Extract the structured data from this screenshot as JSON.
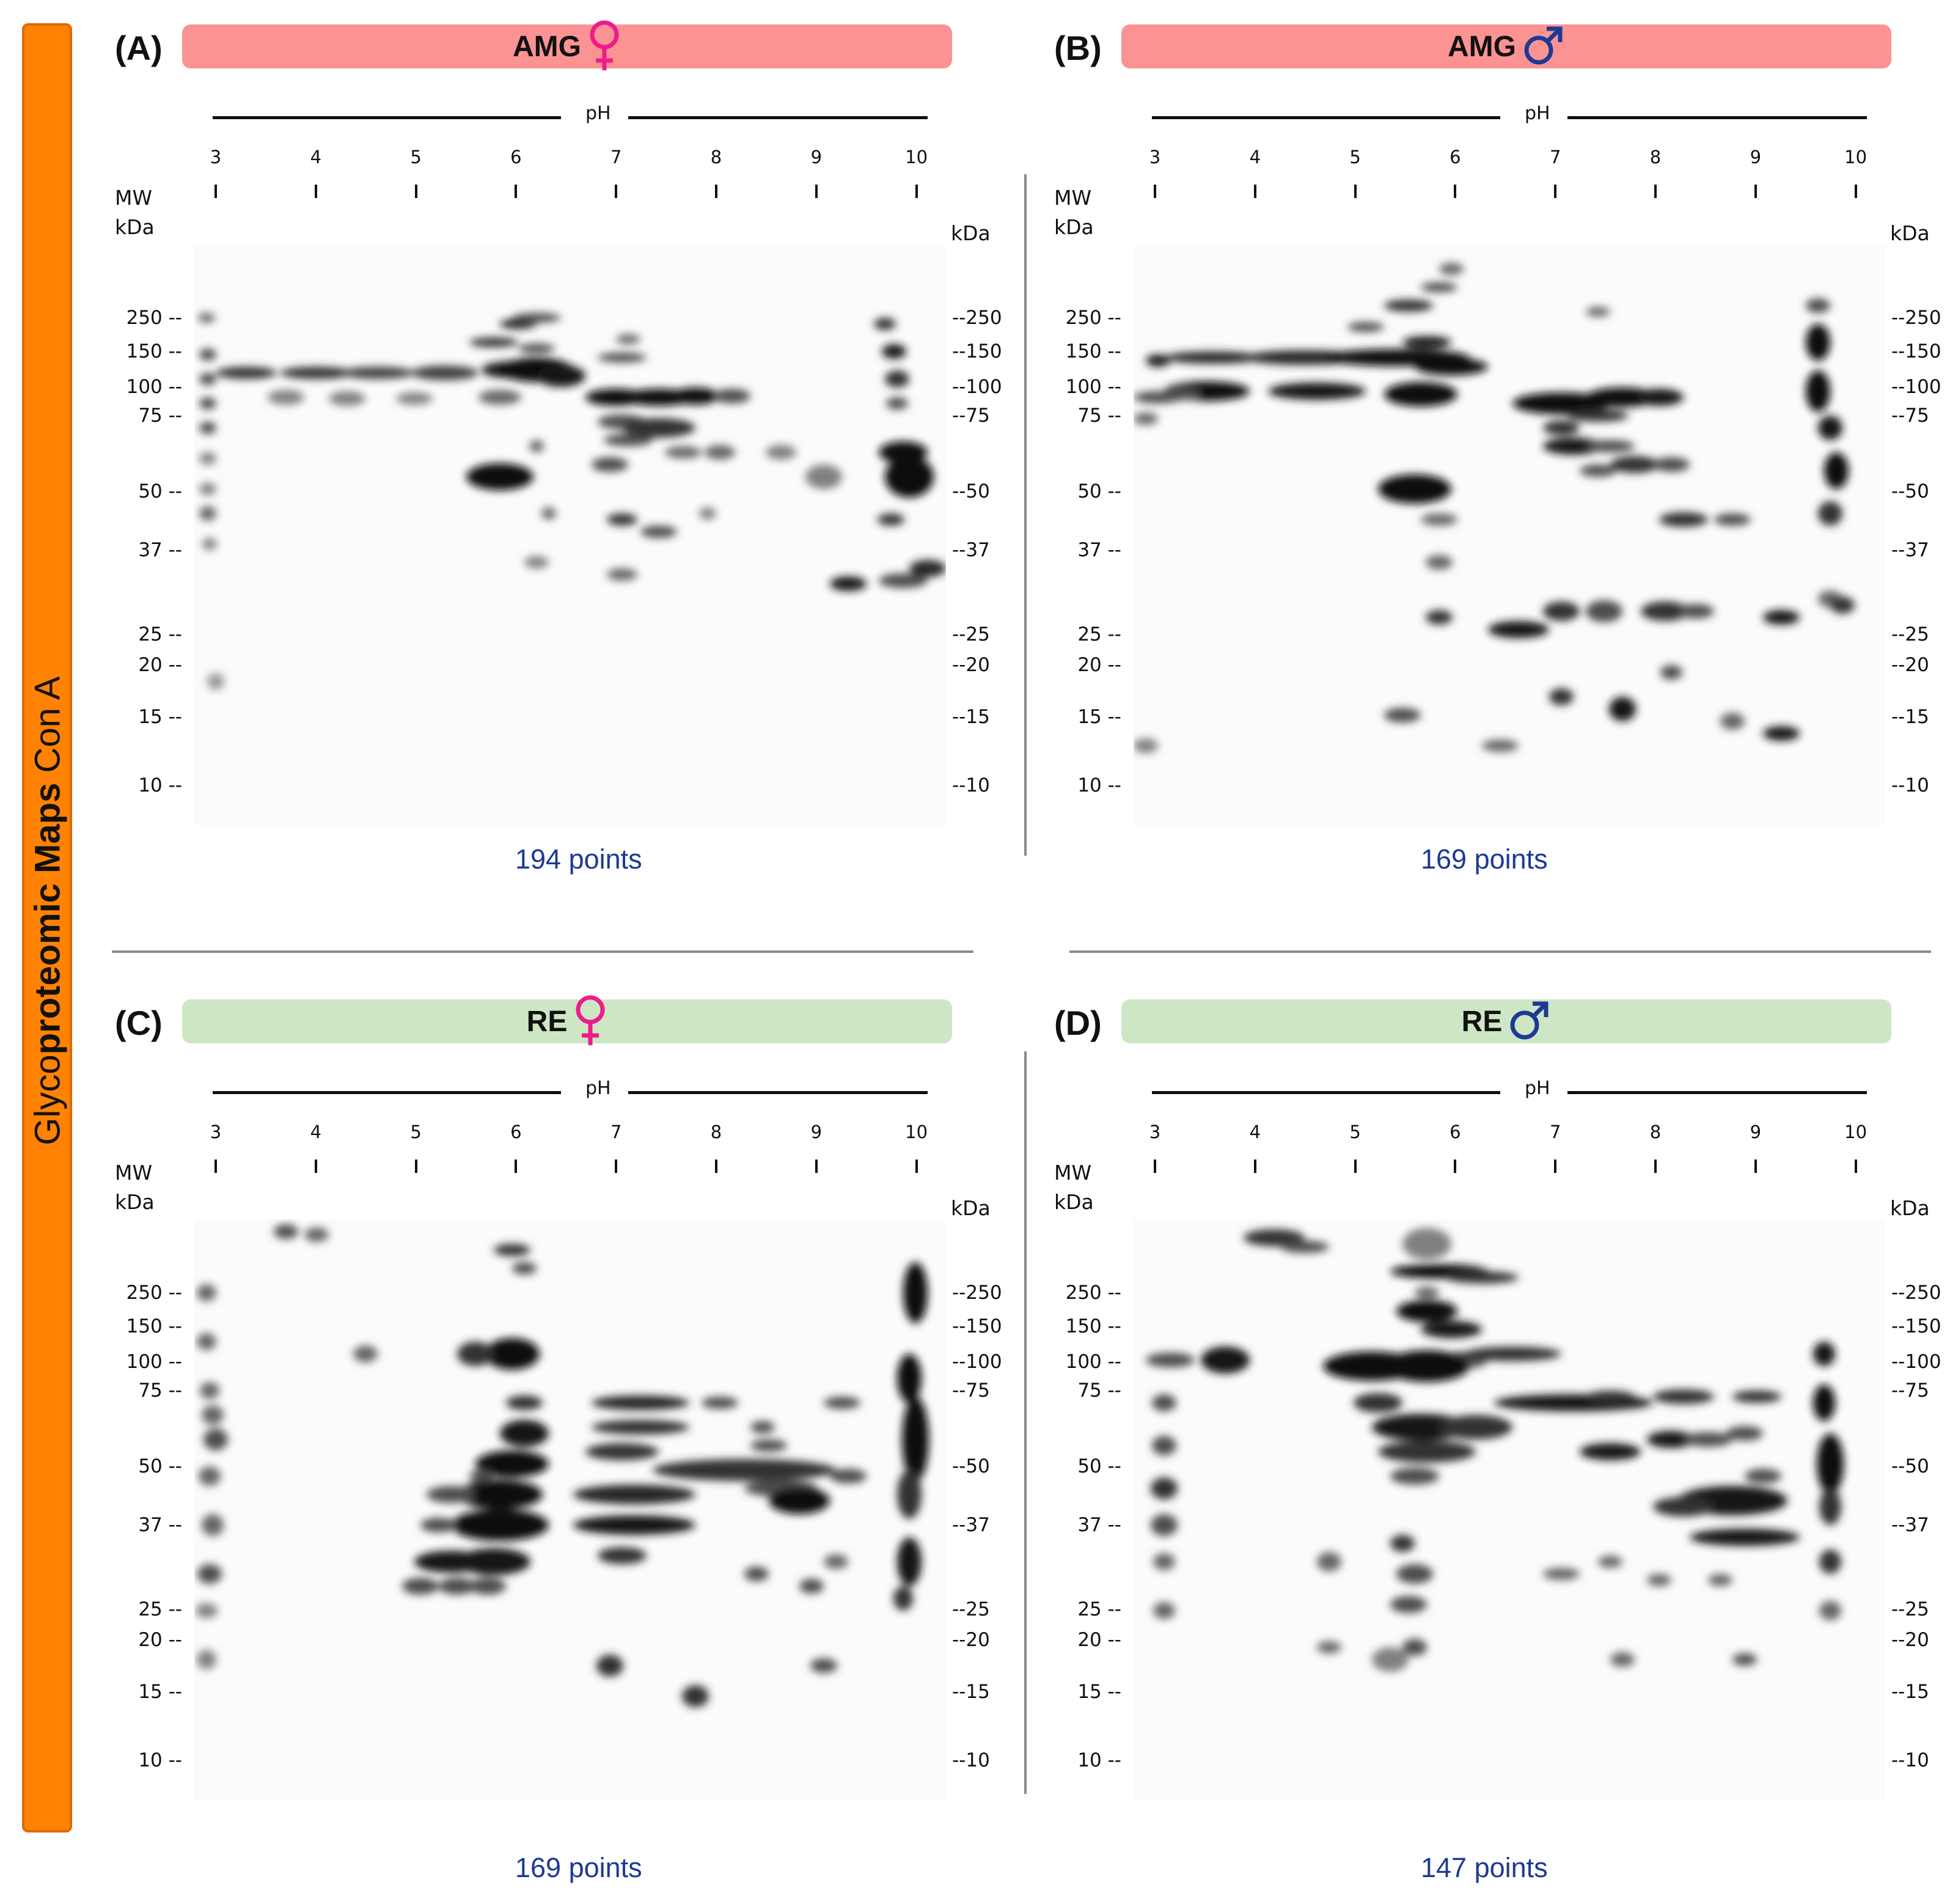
{
  "sidebar": {
    "text_prefix": "Glyco",
    "text_bold": "proteomic Maps",
    "text_suffix": " Con A"
  },
  "axes": {
    "ph_label": "pH",
    "ph_ticks": [
      "3",
      "4",
      "5",
      "6",
      "7",
      "8",
      "9",
      "10"
    ],
    "mw_title": "MW",
    "kda_label": "kDa",
    "mw_left": [
      "250 --",
      "150 --",
      "100 --",
      "75 --",
      "50 --",
      "37 --",
      "25 --",
      "20 --",
      "15 --",
      "10 --"
    ],
    "mw_right": [
      "--250",
      "--150",
      "--100",
      "--75",
      "--50",
      "--37",
      "--25",
      "--20",
      "--15",
      "--10"
    ]
  },
  "colors": {
    "amg_bar": "#fb9393",
    "re_bar": "#cde7c4",
    "female_symbol": "#ec1c8c",
    "male_symbol": "#1c3a94",
    "count_text": "#1c3a94",
    "sidebar": "#ff8202"
  },
  "panels": [
    {
      "letter": "(A)",
      "title": "AMG",
      "sex": "female",
      "sex_icon": "female-symbol-icon",
      "points": "194 points"
    },
    {
      "letter": "(B)",
      "title": "AMG",
      "sex": "male",
      "sex_icon": "male-symbol-icon",
      "points": "169  points"
    },
    {
      "letter": "(C)",
      "title": "RE",
      "sex": "female",
      "sex_icon": "female-symbol-icon",
      "points": "169 points"
    },
    {
      "letter": "(D)",
      "title": "RE",
      "sex": "male",
      "sex_icon": "male-symbol-icon",
      "points": "147  points"
    }
  ]
}
